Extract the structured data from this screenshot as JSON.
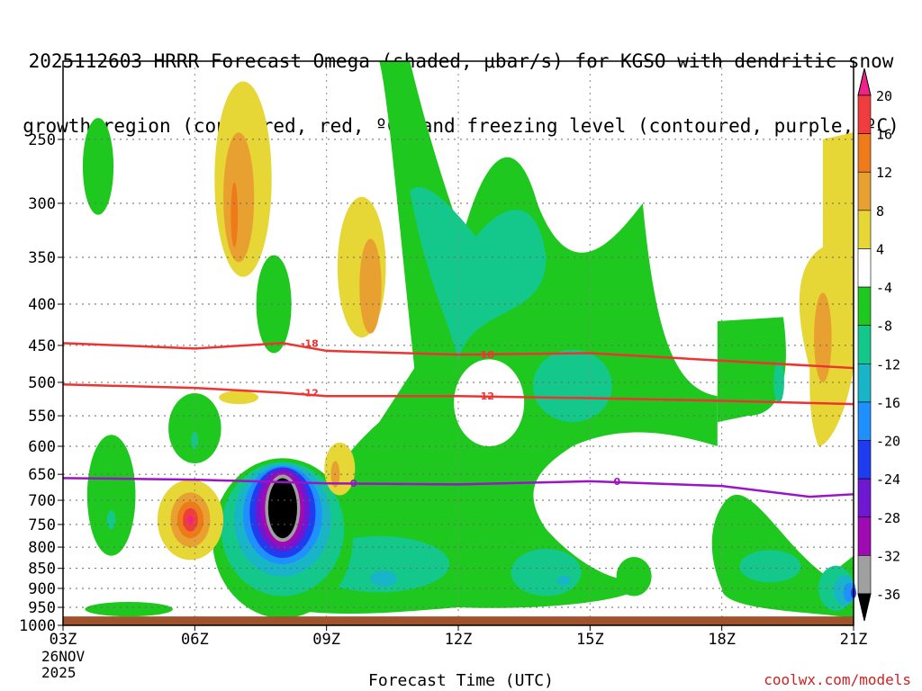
{
  "title": {
    "line1": "2025112603 HRRR Forecast Omega (shaded, μbar/s) for KGSO with dendritic snow",
    "line2": "growth region (contoured, red, ºC) and freezing level (contoured, purple, ºC)"
  },
  "chart_data": {
    "type": "time-height cross section (filled contour)",
    "model": "HRRR",
    "init": "2025112603",
    "station": "KGSO",
    "xlabel": "Forecast Time (UTC)",
    "x_ticks": [
      "03Z",
      "06Z",
      "09Z",
      "12Z",
      "15Z",
      "18Z",
      "21Z"
    ],
    "x_hours": [
      3,
      6,
      9,
      12,
      15,
      18,
      21
    ],
    "x_range": [
      3,
      21
    ],
    "start_date_line1": "26NOV",
    "start_date_line2": "2025",
    "y_ticks": [
      250,
      300,
      350,
      400,
      450,
      500,
      550,
      600,
      650,
      700,
      750,
      800,
      850,
      900,
      950,
      1000
    ],
    "y_range_hpa": [
      1000,
      200
    ],
    "grid": true,
    "colorbar": {
      "units": "μbar/s",
      "labels": [
        "20",
        "16",
        "12",
        "8",
        "4",
        "-4",
        "-8",
        "-12",
        "-16",
        "-20",
        "-24",
        "-28",
        "-32",
        "-36"
      ],
      "levels_top_to_bottom": [
        {
          "lo": 20,
          "hi": null,
          "color": "#ee2288"
        },
        {
          "lo": 16,
          "hi": 20,
          "color": "#f03c3c"
        },
        {
          "lo": 12,
          "hi": 16,
          "color": "#ef7a1a"
        },
        {
          "lo": 8,
          "hi": 12,
          "color": "#e8a030"
        },
        {
          "lo": 4,
          "hi": 8,
          "color": "#e6d636"
        },
        {
          "lo": -4,
          "hi": 4,
          "color": "#ffffff"
        },
        {
          "lo": -8,
          "hi": -4,
          "color": "#1ec81e"
        },
        {
          "lo": -12,
          "hi": -8,
          "color": "#14c88c"
        },
        {
          "lo": -16,
          "hi": -12,
          "color": "#18b4c8"
        },
        {
          "lo": -20,
          "hi": -16,
          "color": "#1e90ff"
        },
        {
          "lo": -24,
          "hi": -20,
          "color": "#1e3cf0"
        },
        {
          "lo": -28,
          "hi": -24,
          "color": "#6e18d2"
        },
        {
          "lo": -32,
          "hi": -28,
          "color": "#a00ab4"
        },
        {
          "lo": -36,
          "hi": -32,
          "color": "#a0a0a0"
        },
        {
          "lo": null,
          "hi": -36,
          "color": "#000000"
        }
      ]
    },
    "contours": [
      {
        "name": "dgz-minus18",
        "label": "-18",
        "color": "#ee3333",
        "points": [
          [
            3,
            447
          ],
          [
            6,
            454
          ],
          [
            8,
            447
          ],
          [
            9,
            457
          ],
          [
            12,
            462
          ],
          [
            15,
            460
          ],
          [
            18,
            470
          ],
          [
            21,
            480
          ]
        ]
      },
      {
        "name": "dgz-minus12",
        "label": "-12",
        "color": "#ee3333",
        "points": [
          [
            3,
            503
          ],
          [
            6,
            508
          ],
          [
            8,
            515
          ],
          [
            9,
            520
          ],
          [
            12,
            520
          ],
          [
            15,
            523
          ],
          [
            18,
            527
          ],
          [
            21,
            532
          ]
        ]
      },
      {
        "name": "freezing-level",
        "label": "0",
        "color": "#9a14c8",
        "points": [
          [
            3,
            657
          ],
          [
            6,
            660
          ],
          [
            9,
            667
          ],
          [
            12,
            669
          ],
          [
            15,
            663
          ],
          [
            18,
            672
          ],
          [
            20,
            693
          ],
          [
            21,
            688
          ]
        ]
      }
    ],
    "omega_features": [
      {
        "kind": "upward",
        "hour": 8,
        "level_hpa": 720,
        "peak": -36
      },
      {
        "kind": "upward",
        "hour": 21,
        "level_hpa": 900,
        "peak": -24
      },
      {
        "kind": "downward",
        "hour": 6,
        "level_hpa": 740,
        "peak": 16
      },
      {
        "kind": "downward",
        "hour": 7,
        "level_hpa": 300,
        "peak": 16
      },
      {
        "kind": "downward",
        "hour": 10,
        "level_hpa": 370,
        "peak": 12
      },
      {
        "kind": "downward",
        "hour": 20,
        "level_hpa": 430,
        "peak": 12
      }
    ],
    "terrain_level_hpa": 975,
    "terrain_color": "#a0522d"
  },
  "credit": "coolwx.com/models"
}
